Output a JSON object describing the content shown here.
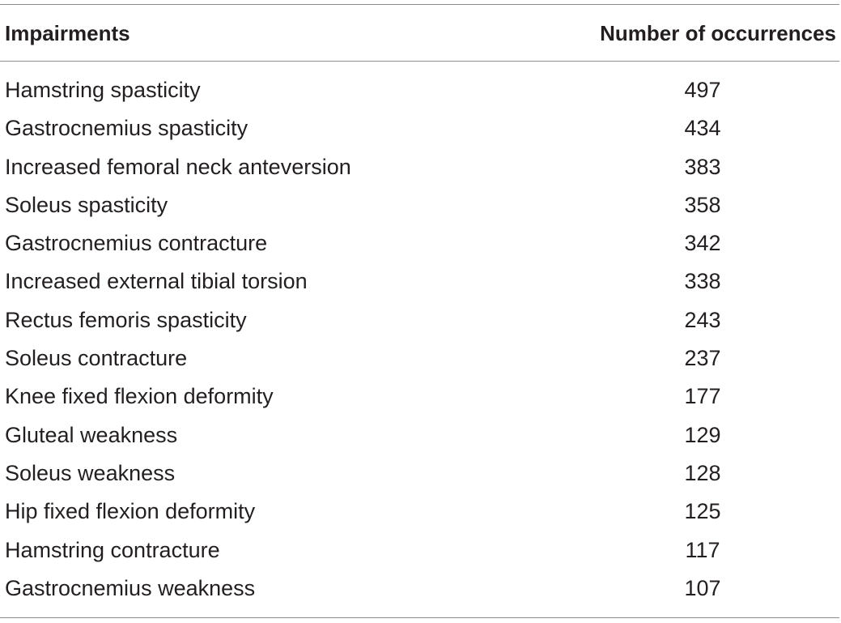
{
  "table": {
    "headers": {
      "impairments": "Impairments",
      "occurrences": "Number of occurrences"
    },
    "rows": [
      {
        "impairment": "Hamstring spasticity",
        "count": "497"
      },
      {
        "impairment": "Gastrocnemius spasticity",
        "count": "434"
      },
      {
        "impairment": "Increased femoral neck anteversion",
        "count": "383"
      },
      {
        "impairment": "Soleus spasticity",
        "count": "358"
      },
      {
        "impairment": "Gastrocnemius contracture",
        "count": "342"
      },
      {
        "impairment": "Increased external tibial torsion",
        "count": "338"
      },
      {
        "impairment": "Rectus femoris spasticity",
        "count": "243"
      },
      {
        "impairment": "Soleus contracture",
        "count": "237"
      },
      {
        "impairment": "Knee fixed flexion deformity",
        "count": "177"
      },
      {
        "impairment": "Gluteal weakness",
        "count": "129"
      },
      {
        "impairment": "Soleus weakness",
        "count": "128"
      },
      {
        "impairment": "Hip fixed flexion deformity",
        "count": "125"
      },
      {
        "impairment": "Hamstring contracture",
        "count": "117"
      },
      {
        "impairment": "Gastrocnemius weakness",
        "count": "107"
      }
    ]
  }
}
